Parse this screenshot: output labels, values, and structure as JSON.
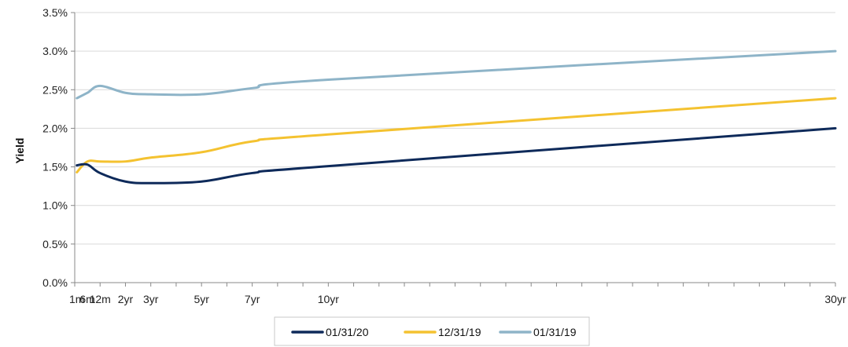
{
  "chart_data": {
    "type": "line",
    "title": "",
    "xlabel": "",
    "ylabel": "Yield",
    "x_ticks": [
      {
        "label": "1m",
        "month": 1
      },
      {
        "label": "6m",
        "month": 6
      },
      {
        "label": "12m",
        "month": 12
      },
      {
        "label": "2yr",
        "month": 24
      },
      {
        "label": "3yr",
        "month": 36
      },
      {
        "label": "5yr",
        "month": 60
      },
      {
        "label": "7yr",
        "month": 84
      },
      {
        "label": "10yr",
        "month": 120
      },
      {
        "label": "30yr",
        "month": 360
      }
    ],
    "y_ticks": [
      "0.0%",
      "0.5%",
      "1.0%",
      "1.5%",
      "2.0%",
      "2.5%",
      "3.0%",
      "3.5%"
    ],
    "ylim": [
      0,
      3.5
    ],
    "grid": "horizontal",
    "legend_position": "bottom",
    "series": [
      {
        "name": "01/31/20",
        "color": "#0e2a5a",
        "values": [
          1.52,
          1.53,
          1.42,
          1.31,
          1.29,
          1.31,
          1.42,
          1.51,
          2.0
        ]
      },
      {
        "name": "12/31/19",
        "color": "#f4c230",
        "values": [
          1.43,
          1.57,
          1.57,
          1.57,
          1.62,
          1.69,
          1.83,
          1.92,
          2.39
        ]
      },
      {
        "name": "01/31/19",
        "color": "#8eb4c8",
        "values": [
          2.39,
          2.46,
          2.55,
          2.46,
          2.44,
          2.44,
          2.52,
          2.63,
          3.0
        ]
      }
    ]
  }
}
